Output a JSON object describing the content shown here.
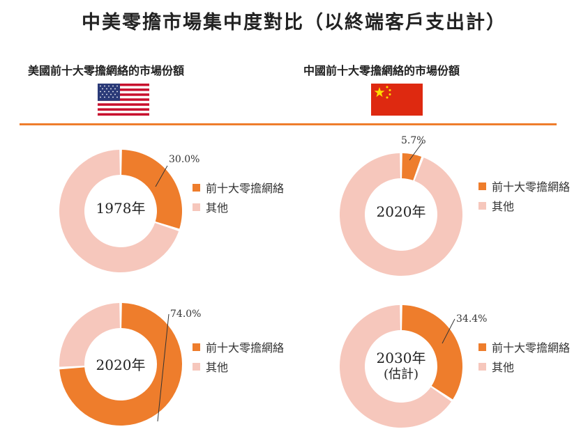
{
  "title": "中美零擔市場集中度對比（以終端客戶支出計）",
  "subtitles": {
    "us": "美國前十大零擔網絡的市場份額",
    "cn": "中國前十大零擔網絡的市場份額"
  },
  "colors": {
    "primary": "#ee7d2c",
    "secondary": "#f6c7bc",
    "divider": "#ee7d2c"
  },
  "legend_items": [
    "前十大零擔網絡",
    "其他"
  ],
  "chart_data": [
    {
      "type": "pie",
      "donut": true,
      "center_label": "1978年",
      "categories": [
        "前十大零擔網絡",
        "其他"
      ],
      "values": [
        30.0,
        70.0
      ],
      "labels": [
        "30.0%",
        ""
      ]
    },
    {
      "type": "pie",
      "donut": true,
      "center_label": "2020年",
      "categories": [
        "前十大零擔網絡",
        "其他"
      ],
      "values": [
        5.7,
        94.3
      ],
      "labels": [
        "5.7%",
        ""
      ]
    },
    {
      "type": "pie",
      "donut": true,
      "center_label": "2020年",
      "categories": [
        "前十大零擔網絡",
        "其他"
      ],
      "values": [
        74.0,
        26.0
      ],
      "labels": [
        "74.0%",
        ""
      ]
    },
    {
      "type": "pie",
      "donut": true,
      "center_label": "2030年",
      "center_sublabel": "(估計)",
      "categories": [
        "前十大零擔網絡",
        "其他"
      ],
      "values": [
        34.4,
        65.6
      ],
      "labels": [
        "34.4%",
        ""
      ]
    }
  ]
}
